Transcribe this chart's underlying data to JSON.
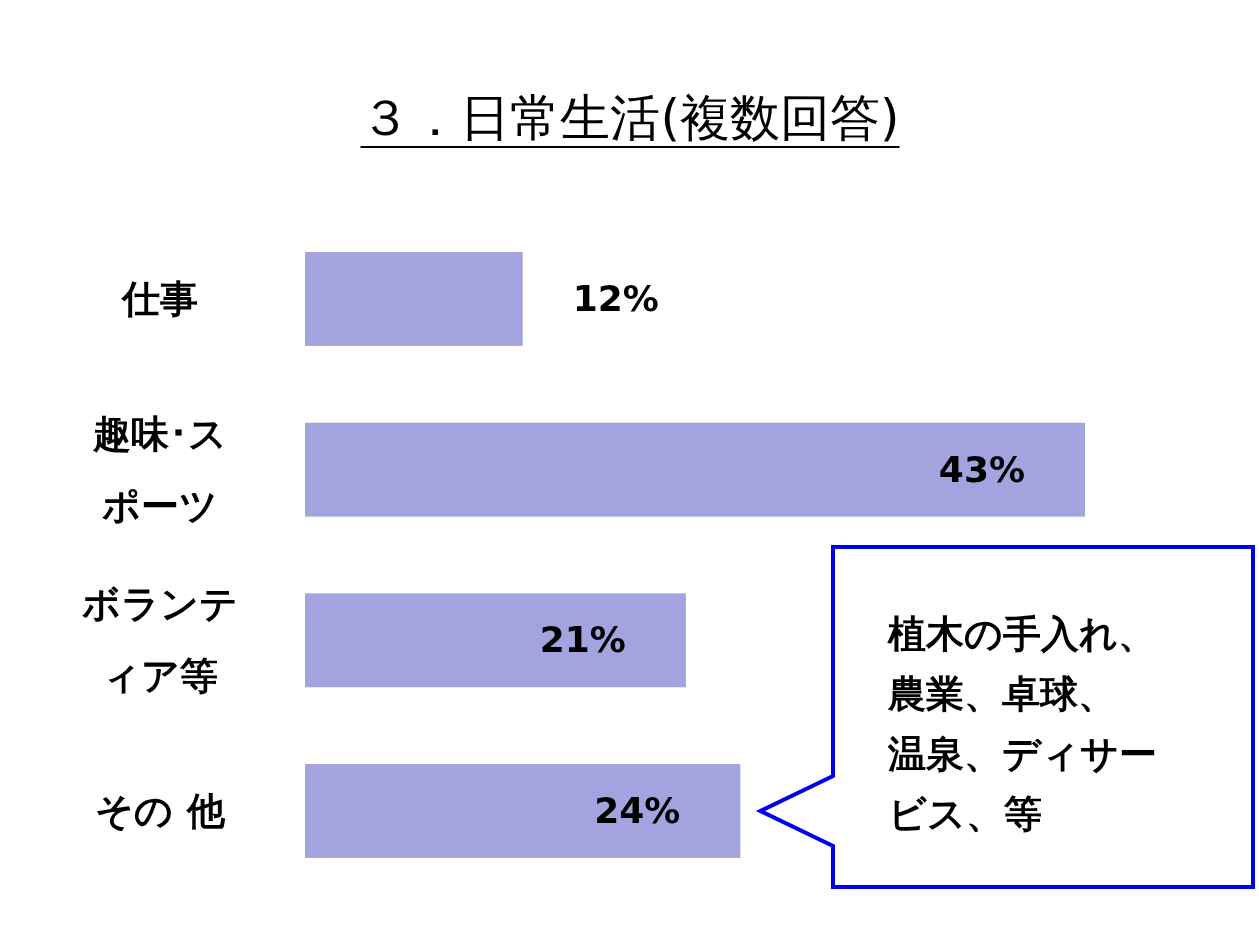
{
  "chart_data": {
    "type": "bar",
    "orientation": "horizontal",
    "title": "３．日常生活(複数回答)",
    "categories": [
      "仕事",
      "趣味･スポーツ",
      "ボランティア等",
      "その 他"
    ],
    "values": [
      12,
      43,
      21,
      24
    ],
    "value_labels": [
      "12%",
      "43%",
      "21%",
      "24%"
    ],
    "color": "#a3a3e0",
    "annotations": [
      "植木の手入れ、農業、卓球、温泉、ディサービス、等"
    ]
  }
}
